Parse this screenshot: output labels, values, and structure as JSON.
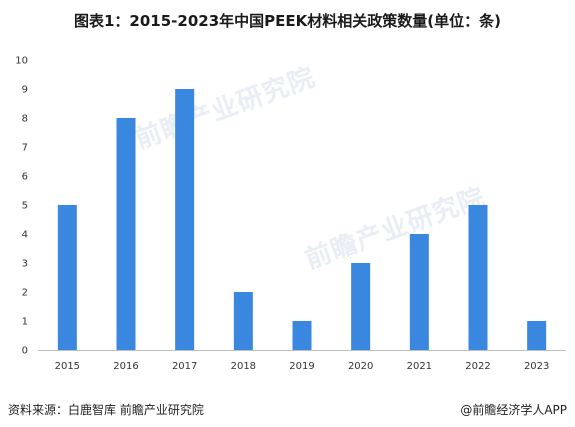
{
  "title": "图表1：2015-2023年中国PEEK材料相关政策数量(单位：条)",
  "chart_data": {
    "type": "bar",
    "categories": [
      "2015",
      "2016",
      "2017",
      "2018",
      "2019",
      "2020",
      "2021",
      "2022",
      "2023"
    ],
    "values": [
      5,
      8,
      9,
      2,
      1,
      3,
      4,
      5,
      1
    ],
    "yticks": [
      0,
      1,
      2,
      3,
      4,
      5,
      6,
      7,
      8,
      9,
      10
    ],
    "ylim": [
      0,
      10
    ],
    "grid": false,
    "bar_color": "#3a87e0"
  },
  "footer": {
    "source": "资料来源：白鹿智库 前瞻产业研究院",
    "brand": "@前瞻经济学人APP"
  },
  "watermarks": [
    "前瞻产业研究院",
    "前瞻产业研究院"
  ]
}
